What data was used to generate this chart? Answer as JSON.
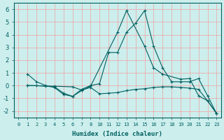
{
  "xlabel": "Humidex (Indice chaleur)",
  "background_color": "#cceeed",
  "grid_color": "#f0a0a0",
  "line_color": "#006060",
  "ylim": [
    -2.5,
    6.5
  ],
  "xtick_labels": [
    "0",
    "1",
    "2",
    "3",
    "4",
    "5",
    "6",
    "7",
    "8",
    "10",
    "11",
    "12",
    "13",
    "14",
    "15",
    "16",
    "17",
    "18",
    "19",
    "20",
    "21",
    "22",
    "23"
  ],
  "yticks": [
    -2,
    -1,
    0,
    1,
    2,
    3,
    4,
    5,
    6
  ],
  "series": [
    {
      "xi": [
        1,
        2,
        3,
        4,
        5,
        6,
        7,
        8,
        11,
        12,
        14,
        15,
        16,
        18,
        19,
        20,
        21,
        22
      ],
      "y": [
        0.9,
        0.3,
        0.0,
        -0.15,
        -0.7,
        -0.85,
        -0.4,
        -0.05,
        4.2,
        5.9,
        3.1,
        1.4,
        0.9,
        0.5,
        0.55,
        -0.8,
        -1.2,
        -2.2
      ]
    },
    {
      "xi": [
        1,
        2,
        3,
        4,
        5,
        6,
        7,
        8,
        9,
        10,
        11,
        12,
        13,
        14,
        15,
        16,
        17,
        18,
        19,
        20,
        21,
        22
      ],
      "y": [
        0.0,
        0.0,
        -0.05,
        -0.1,
        -0.6,
        -0.85,
        -0.3,
        0.0,
        0.15,
        2.6,
        2.6,
        4.2,
        4.9,
        5.9,
        3.1,
        1.4,
        0.3,
        0.3,
        0.3,
        0.55,
        -0.8,
        -2.2
      ]
    },
    {
      "xi": [
        1,
        4,
        6,
        7,
        8,
        9,
        10,
        11,
        12,
        13,
        14,
        15,
        16,
        17,
        18,
        19,
        20,
        21,
        22
      ],
      "y": [
        0.0,
        -0.05,
        -0.1,
        -0.35,
        -0.15,
        -0.65,
        -0.6,
        -0.55,
        -0.4,
        -0.3,
        -0.25,
        -0.15,
        -0.1,
        -0.1,
        -0.15,
        -0.2,
        -0.3,
        -1.2,
        -2.2
      ]
    }
  ]
}
